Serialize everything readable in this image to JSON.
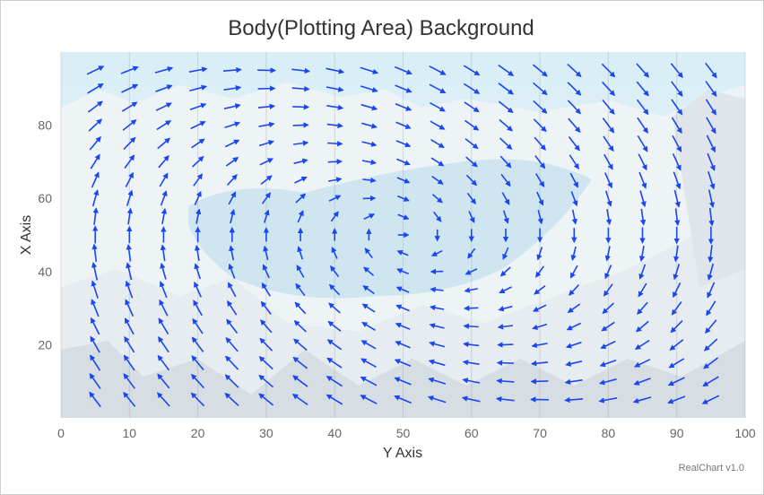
{
  "title": "Body(Plotting Area) Background",
  "credit": "RealChart v1.0",
  "chart_data": {
    "type": "vector",
    "title": "Body(Plotting Area) Background",
    "xlabel": "Y Axis",
    "ylabel": "X Axis",
    "xlim": [
      0,
      100
    ],
    "ylim": [
      0,
      100
    ],
    "x_ticks": [
      "0",
      "10",
      "20",
      "30",
      "40",
      "50",
      "60",
      "70",
      "80",
      "90",
      "100"
    ],
    "y_ticks": [
      "20",
      "40",
      "60",
      "80"
    ],
    "grid": true,
    "background": "snowy mountain lake photo",
    "vector_color": "#1a47f0",
    "field": {
      "x_start": 5,
      "x_end": 95,
      "x_step": 5,
      "y_start": 5,
      "y_end": 95,
      "y_step": 5,
      "note_values": "vectors listed below, row-major by y descending"
    },
    "vectors": []
  }
}
